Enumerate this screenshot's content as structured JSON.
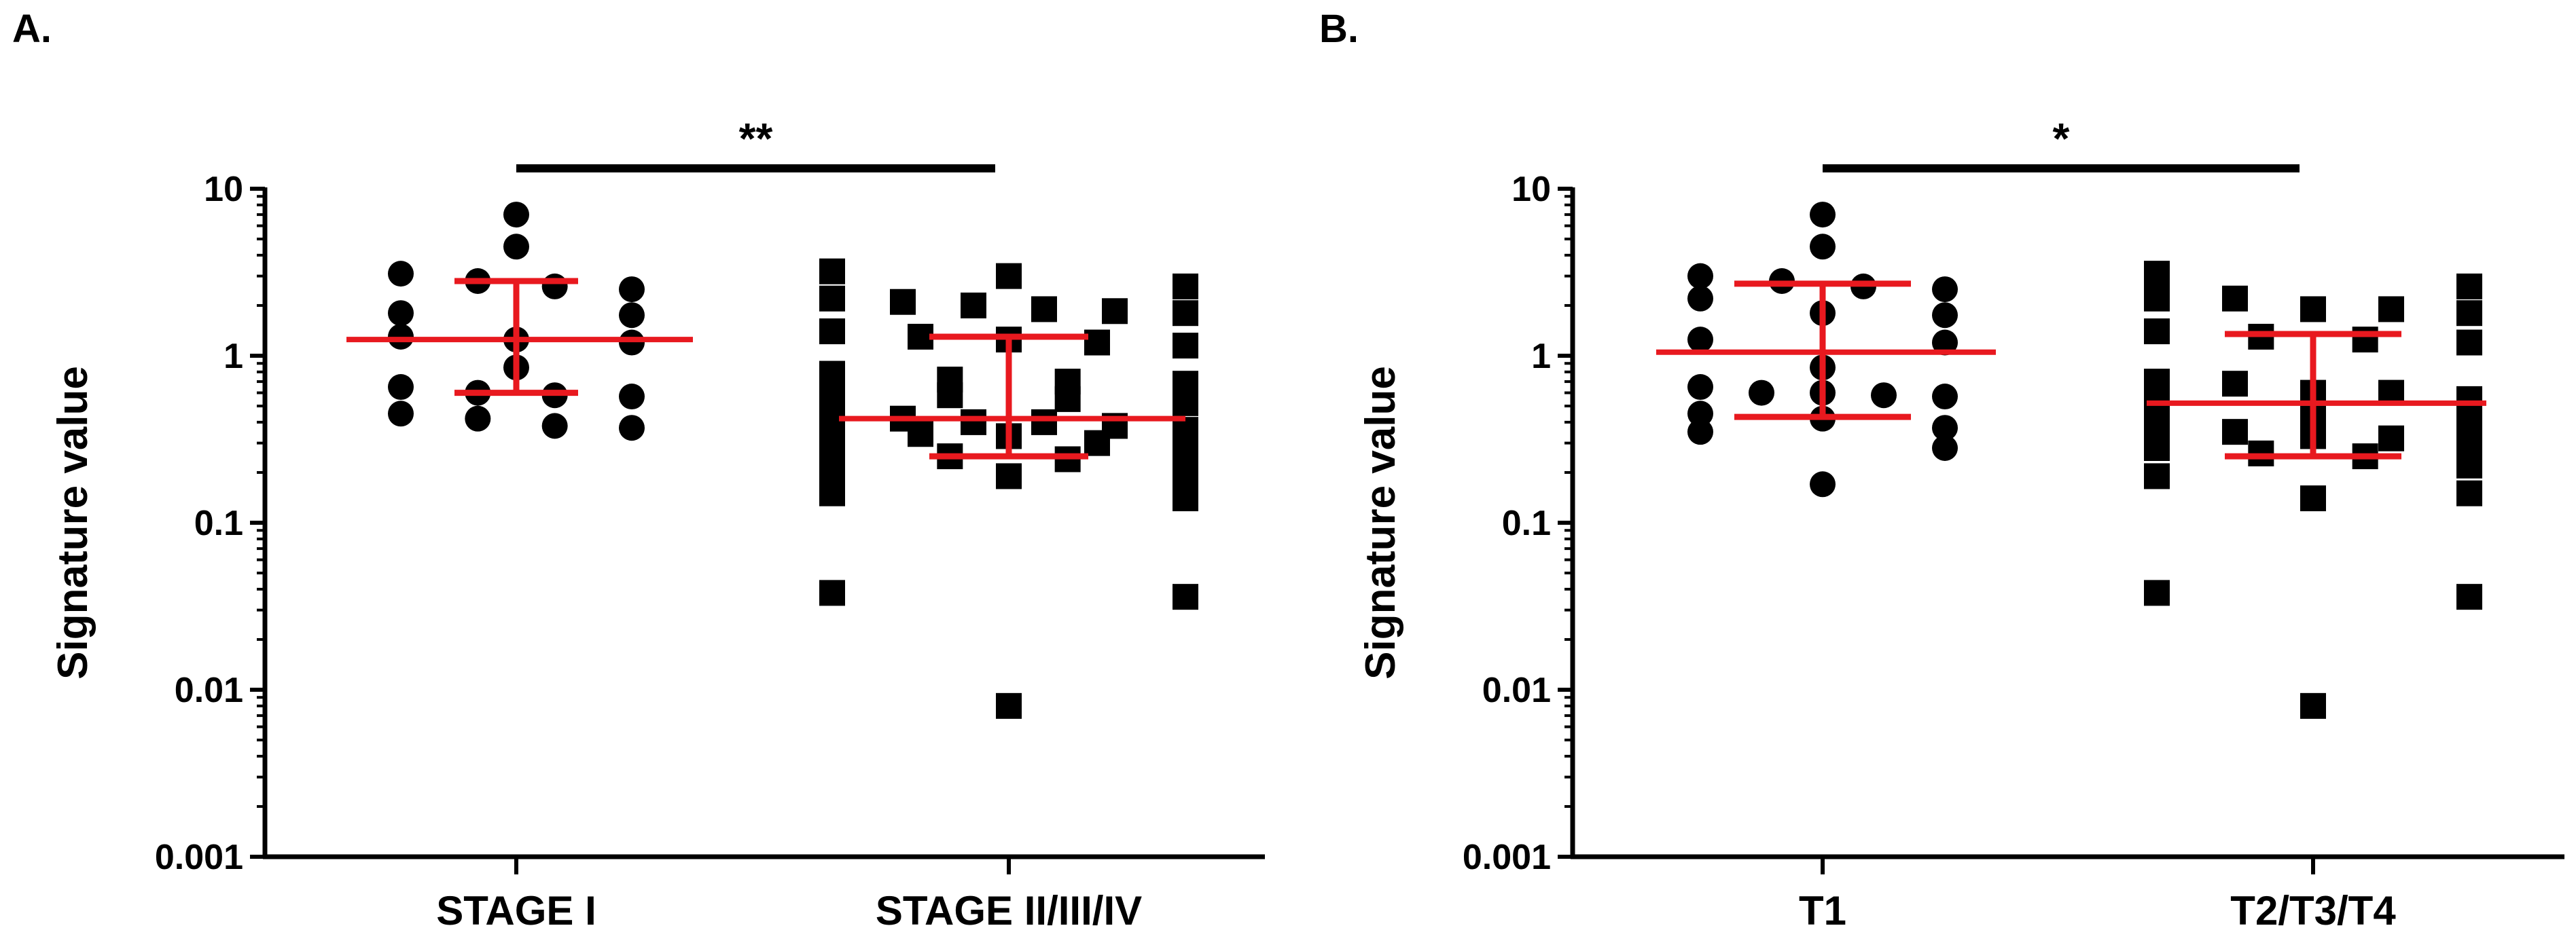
{
  "chart_data": [
    {
      "panel": "A.",
      "type": "scatter",
      "ylabel": "Signature value",
      "yscale": "log",
      "ylim": [
        0.001,
        10
      ],
      "yticks": [
        {
          "v": 10,
          "t": "10"
        },
        {
          "v": 1,
          "t": "1"
        },
        {
          "v": 0.1,
          "t": "0.1"
        },
        {
          "v": 0.01,
          "t": "0.01"
        },
        {
          "v": 0.001,
          "t": "0.001"
        }
      ],
      "categories": [
        "STAGE I",
        "STAGE II/III/IV"
      ],
      "significance": "**",
      "colors": {
        "points": "#000000",
        "summary": "#e8191f"
      },
      "groups": [
        {
          "name": "STAGE I",
          "marker": "circle",
          "values": [
            7.0,
            4.5,
            3.1,
            2.8,
            2.6,
            2.5,
            1.8,
            1.75,
            1.3,
            1.25,
            1.2,
            0.85,
            0.65,
            0.6,
            0.58,
            0.57,
            0.45,
            0.42,
            0.38,
            0.37
          ],
          "summary": {
            "center": 1.25,
            "upper": 2.8,
            "lower": 0.6
          }
        },
        {
          "name": "STAGE II/III/IV",
          "marker": "square",
          "values": [
            3.2,
            3.0,
            2.6,
            2.2,
            2.1,
            2.0,
            1.9,
            1.85,
            1.8,
            1.4,
            1.3,
            1.25,
            1.2,
            1.15,
            0.78,
            0.72,
            0.7,
            0.68,
            0.6,
            0.58,
            0.55,
            0.52,
            0.45,
            0.42,
            0.4,
            0.4,
            0.38,
            0.36,
            0.35,
            0.34,
            0.33,
            0.3,
            0.28,
            0.26,
            0.25,
            0.24,
            0.23,
            0.2,
            0.19,
            0.17,
            0.15,
            0.14,
            0.038,
            0.036,
            0.008
          ],
          "summary": {
            "center": 0.42,
            "upper": 1.3,
            "lower": 0.25
          }
        }
      ]
    },
    {
      "panel": "B.",
      "type": "scatter",
      "ylabel": "Signature value",
      "yscale": "log",
      "ylim": [
        0.001,
        10
      ],
      "yticks": [
        {
          "v": 10,
          "t": "10"
        },
        {
          "v": 1,
          "t": "1"
        },
        {
          "v": 0.1,
          "t": "0.1"
        },
        {
          "v": 0.01,
          "t": "0.01"
        },
        {
          "v": 0.001,
          "t": "0.001"
        }
      ],
      "categories": [
        "T1",
        "T2/T3/T4"
      ],
      "significance": "*",
      "colors": {
        "points": "#000000",
        "summary": "#e8191f"
      },
      "groups": [
        {
          "name": "T1",
          "marker": "circle",
          "values": [
            7.0,
            4.5,
            3.0,
            2.8,
            2.6,
            2.5,
            2.2,
            1.8,
            1.75,
            1.25,
            1.2,
            0.85,
            0.65,
            0.6,
            0.6,
            0.58,
            0.57,
            0.45,
            0.42,
            0.37,
            0.35,
            0.28,
            0.17
          ],
          "summary": {
            "center": 1.05,
            "upper": 2.7,
            "lower": 0.43
          }
        },
        {
          "name": "T2/T3/T4",
          "marker": "square",
          "values": [
            3.1,
            2.6,
            2.2,
            2.2,
            1.9,
            1.9,
            1.8,
            1.4,
            1.3,
            1.25,
            1.2,
            0.7,
            0.68,
            0.6,
            0.6,
            0.55,
            0.5,
            0.42,
            0.4,
            0.38,
            0.35,
            0.33,
            0.32,
            0.3,
            0.28,
            0.26,
            0.25,
            0.22,
            0.19,
            0.15,
            0.14,
            0.038,
            0.036,
            0.008
          ],
          "summary": {
            "center": 0.52,
            "upper": 1.35,
            "lower": 0.25
          }
        }
      ]
    }
  ]
}
